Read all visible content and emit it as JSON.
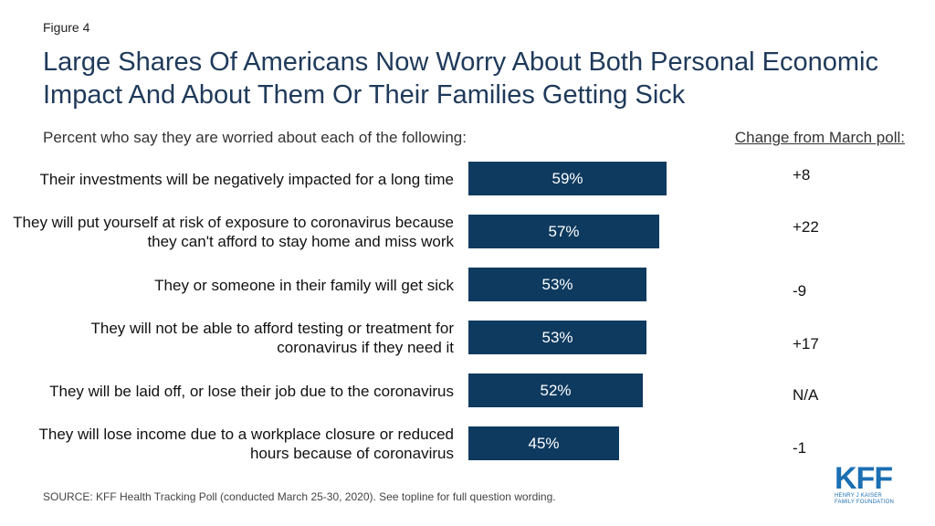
{
  "figure_label": "Figure 4",
  "title": "Large Shares Of Americans Now Worry About Both Personal Economic Impact And About Them Or Their Families Getting Sick",
  "subtitle": "Percent who say they are worried about each of the following:",
  "change_header": "Change from March poll:",
  "source": "SOURCE: KFF Health Tracking Poll (conducted March 25-30, 2020). See topline for full question wording.",
  "logo": {
    "mark": "KFF",
    "line1": "HENRY J KAISER",
    "line2": "FAMILY FOUNDATION"
  },
  "colors": {
    "bar": "#0e3a5f",
    "title": "#1f3a5a",
    "logo": "#1b6fb3"
  },
  "chart_data": {
    "type": "bar",
    "orientation": "horizontal",
    "categories": [
      "Their investments will be negatively impacted for a long time",
      "They will put yourself at risk of exposure to coronavirus because they can't afford to stay home and miss work",
      "They or someone in their family will get sick",
      "They will not be able to afford testing or treatment for coronavirus if they need it",
      "They will be laid off, or lose their job due to the coronavirus",
      "They will lose income due to a workplace closure or reduced hours because of coronavirus"
    ],
    "values": [
      59,
      57,
      53,
      53,
      52,
      45
    ],
    "data_labels": [
      "59%",
      "57%",
      "53%",
      "53%",
      "52%",
      "45%"
    ],
    "changes": [
      "+8",
      "+22",
      "-9",
      "+17",
      "N/A",
      "-1"
    ],
    "xlim": [
      0,
      100
    ],
    "grid": false
  }
}
